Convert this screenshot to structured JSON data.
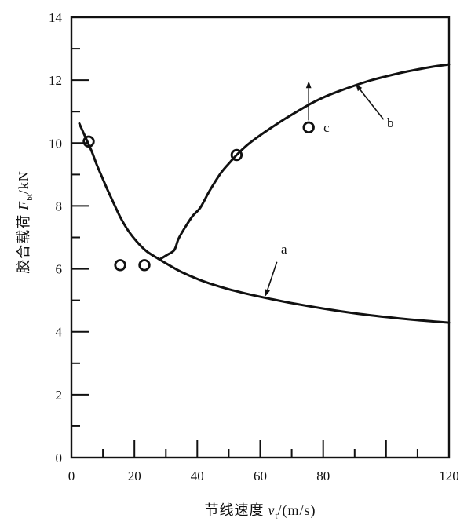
{
  "figure": {
    "xlabel": {
      "cjk": "节线速度",
      "sym": "v",
      "sub": "t",
      "unit": "/(m/s)"
    },
    "ylabel": {
      "cjk": "胶合载荷",
      "sym": "F",
      "sub": "bt",
      "unit": "/kN"
    }
  },
  "chart_data": {
    "type": "line",
    "title": "",
    "xlabel": "节线速度 v_t/(m/s)",
    "ylabel": "胶合载荷 F_bt/kN",
    "xlim": [
      0,
      120
    ],
    "ylim": [
      0,
      14
    ],
    "grid": false,
    "legend": "none",
    "ink_color": "#111111",
    "x_ticks": [
      {
        "v": 0,
        "label": "0"
      },
      {
        "v": 20,
        "label": "20"
      },
      {
        "v": 40,
        "label": "40"
      },
      {
        "v": 60,
        "label": "60"
      },
      {
        "v": 80,
        "label": "80"
      },
      {
        "v": 100,
        "label": ""
      },
      {
        "v": 120,
        "label": "120"
      }
    ],
    "x_minor_ticks": [
      10,
      30,
      50,
      70,
      90,
      110
    ],
    "y_ticks": [
      {
        "v": 0,
        "label": "0"
      },
      {
        "v": 2,
        "label": "2"
      },
      {
        "v": 4,
        "label": "4"
      },
      {
        "v": 6,
        "label": "6"
      },
      {
        "v": 8,
        "label": "8"
      },
      {
        "v": 10,
        "label": "10"
      },
      {
        "v": 12,
        "label": "12"
      },
      {
        "v": 14,
        "label": "14"
      }
    ],
    "y_minor_ticks": [
      1,
      3,
      5,
      7,
      9,
      11,
      13
    ],
    "series": [
      {
        "name": "a",
        "points": [
          [
            2.5,
            10.62
          ],
          [
            3.5,
            10.4
          ],
          [
            4.5,
            10.18
          ],
          [
            5.5,
            9.95
          ],
          [
            6.5,
            9.72
          ],
          [
            8,
            9.32
          ],
          [
            9.5,
            8.97
          ],
          [
            11,
            8.62
          ],
          [
            13,
            8.18
          ],
          [
            15.5,
            7.65
          ],
          [
            18,
            7.22
          ],
          [
            21,
            6.84
          ],
          [
            24,
            6.55
          ],
          [
            28,
            6.3
          ],
          [
            31,
            6.12
          ],
          [
            35,
            5.9
          ],
          [
            40,
            5.68
          ],
          [
            45,
            5.5
          ],
          [
            50,
            5.35
          ],
          [
            56,
            5.2
          ],
          [
            62,
            5.07
          ],
          [
            70,
            4.91
          ],
          [
            80,
            4.74
          ],
          [
            90,
            4.59
          ],
          [
            100,
            4.47
          ],
          [
            110,
            4.37
          ],
          [
            120,
            4.29
          ]
        ]
      },
      {
        "name": "b",
        "points": [
          [
            28,
            6.3
          ],
          [
            30.5,
            6.45
          ],
          [
            32.7,
            6.6
          ],
          [
            34,
            6.95
          ],
          [
            36,
            7.3
          ],
          [
            38.5,
            7.68
          ],
          [
            41,
            7.95
          ],
          [
            44,
            8.5
          ],
          [
            47.5,
            9.05
          ],
          [
            50.5,
            9.4
          ],
          [
            52.5,
            9.62
          ],
          [
            56,
            9.95
          ],
          [
            60,
            10.25
          ],
          [
            64,
            10.52
          ],
          [
            68,
            10.78
          ],
          [
            72,
            11.02
          ],
          [
            76,
            11.25
          ],
          [
            80,
            11.45
          ],
          [
            85,
            11.65
          ],
          [
            90,
            11.83
          ],
          [
            95,
            11.99
          ],
          [
            100,
            12.12
          ],
          [
            105,
            12.24
          ],
          [
            110,
            12.34
          ],
          [
            115,
            12.43
          ],
          [
            120,
            12.5
          ]
        ]
      }
    ],
    "scatter_points": [
      {
        "x": 5.5,
        "y": 10.05
      },
      {
        "x": 15.5,
        "y": 6.12
      },
      {
        "x": 23.2,
        "y": 6.12
      },
      {
        "x": 52.5,
        "y": 9.62
      },
      {
        "x": 75.4,
        "y": 10.5
      }
    ],
    "annotations": [
      {
        "label": "a",
        "text_xy": [
          66.6,
          6.61
        ],
        "arrow_from": [
          65.3,
          6.22
        ],
        "arrow_to": [
          61.6,
          5.12
        ]
      },
      {
        "label": "b",
        "text_xy": [
          100.3,
          10.63
        ],
        "arrow_from": [
          99.2,
          10.75
        ],
        "arrow_to": [
          90.3,
          11.88
        ]
      },
      {
        "label": "c",
        "text_xy": [
          80.1,
          10.48
        ],
        "arrow_from": [
          75.4,
          10.72
        ],
        "arrow_to": [
          75.4,
          11.97
        ]
      }
    ]
  }
}
